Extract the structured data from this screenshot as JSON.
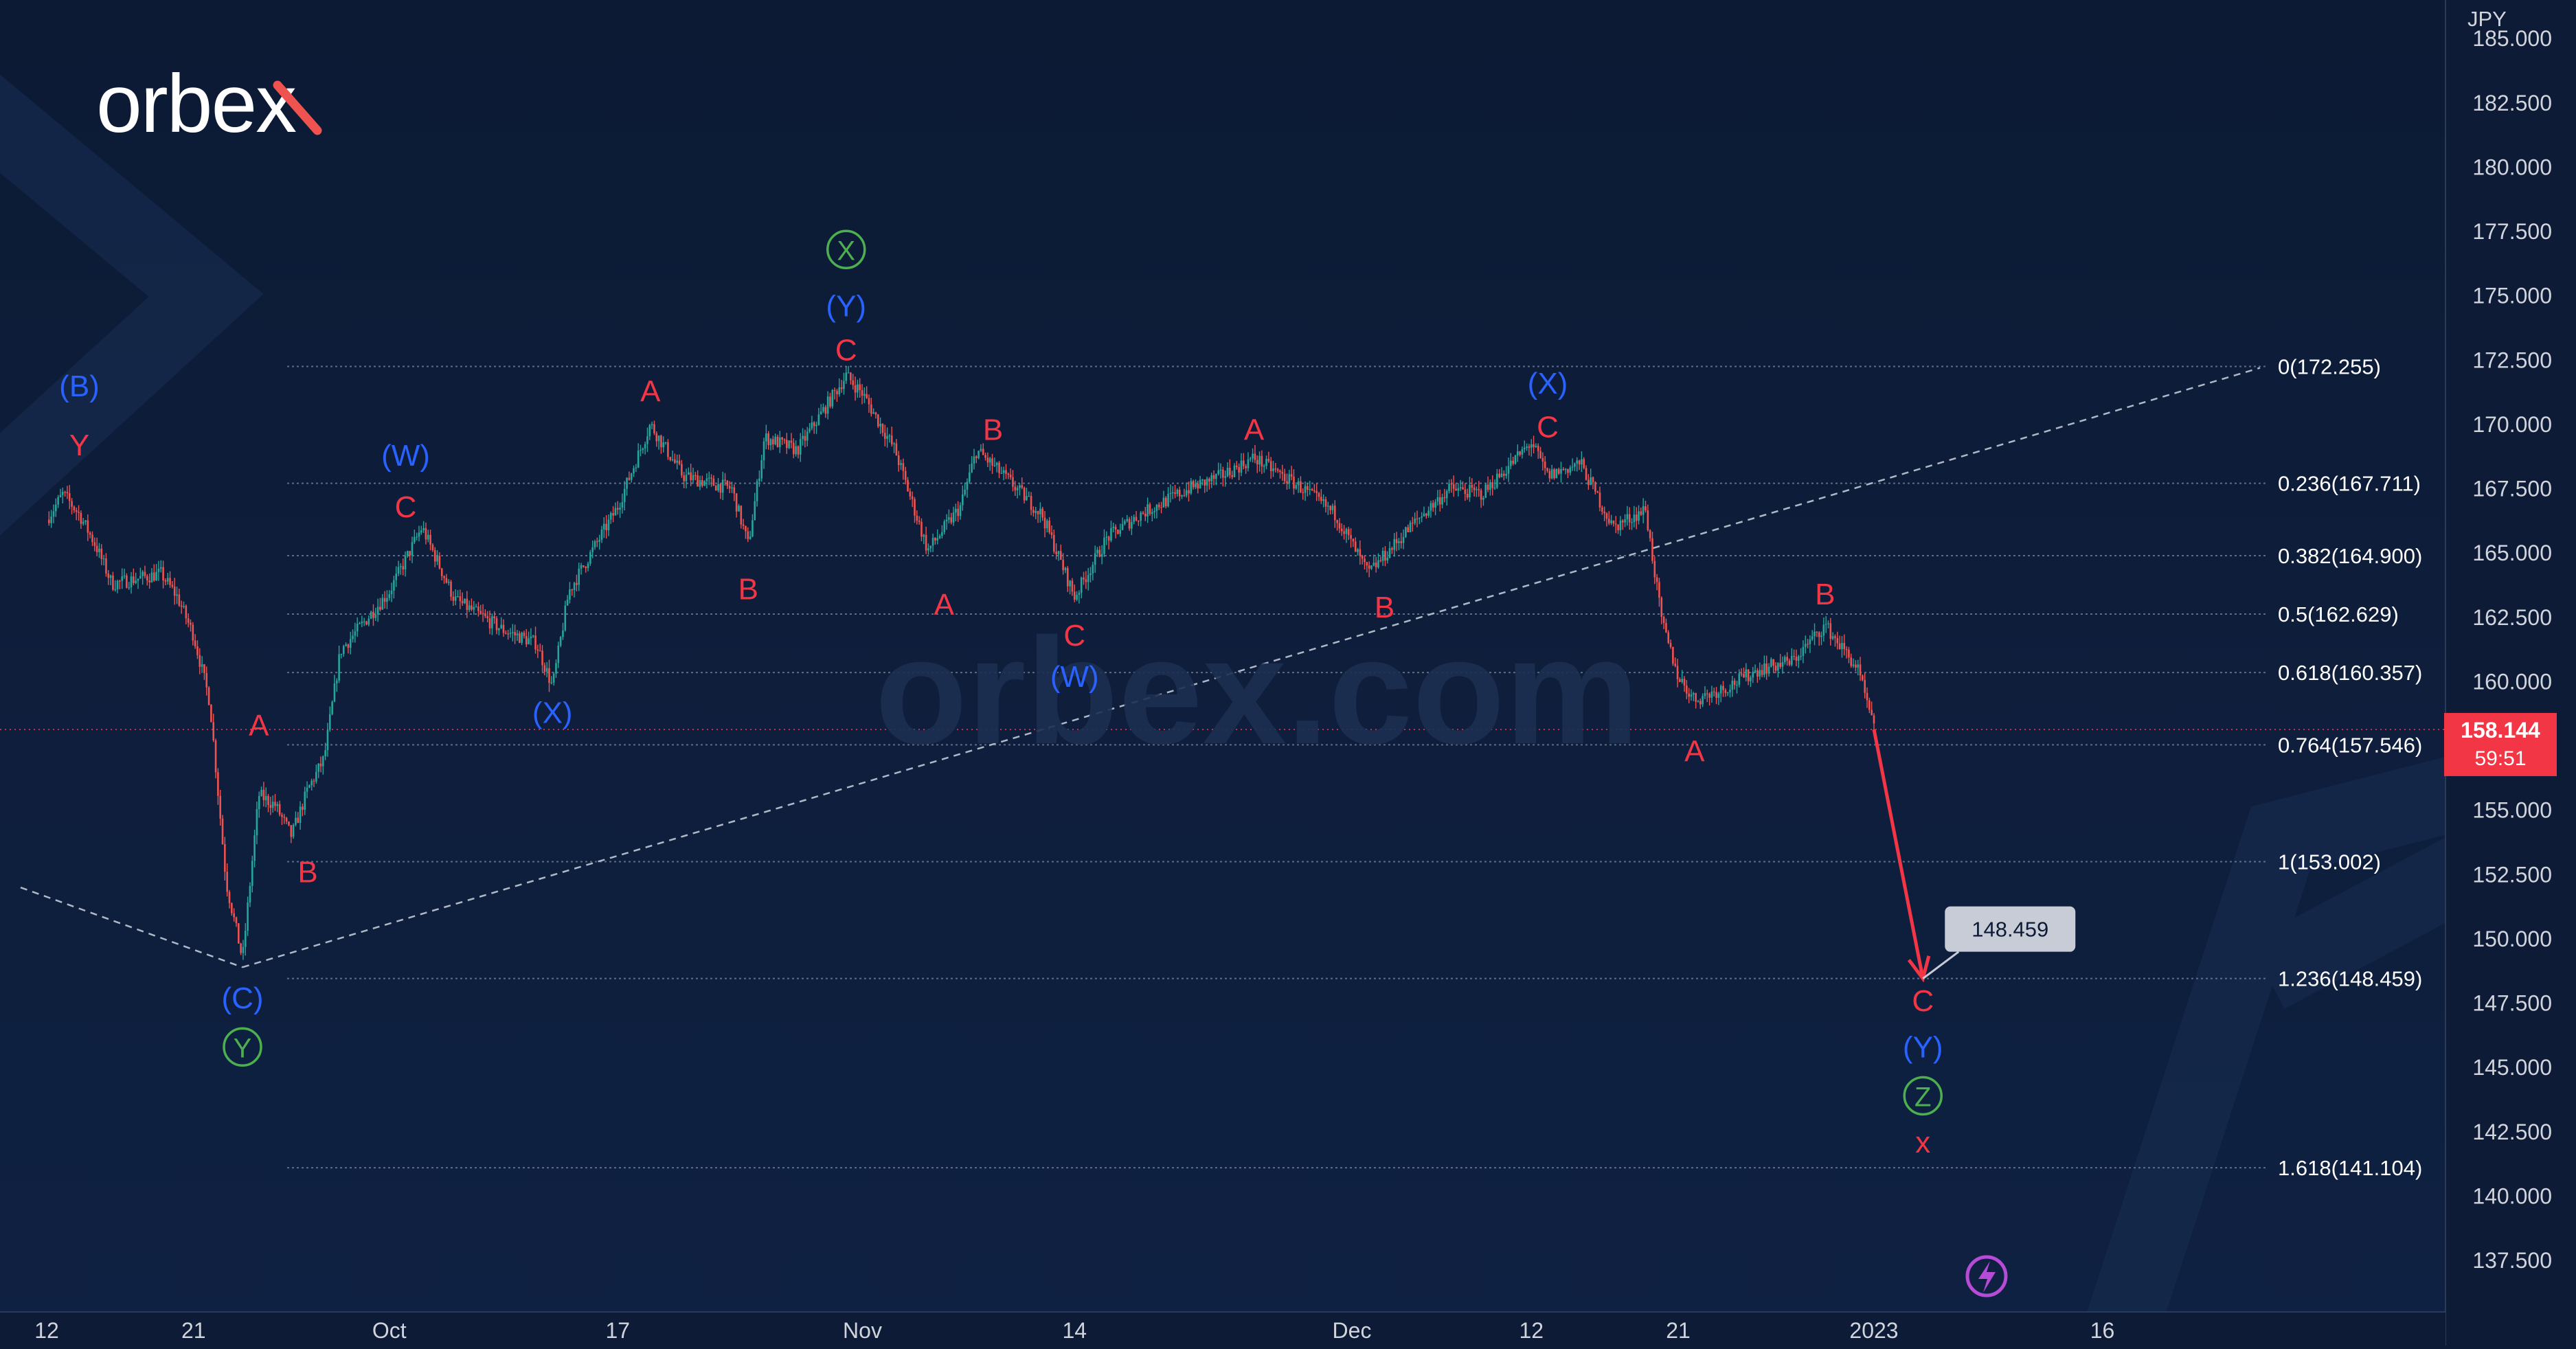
{
  "brand": {
    "logo_text": "orbex",
    "watermark_text": "orbex.com"
  },
  "colors": {
    "background": "#0d1b36",
    "candle_up": "#26a69a",
    "candle_down": "#ef5350",
    "label_red": "#f23645",
    "label_blue": "#2962ff",
    "label_green": "#4caf50",
    "grid": "#4a5a78",
    "axis_text": "#d1d4dc",
    "price_tag": "#f23645"
  },
  "chart_data": {
    "type": "candlestick",
    "currency_label": "JPY",
    "ylim": [
      135.5,
      186.5
    ],
    "y_ticks": [
      "137.500",
      "140.000",
      "142.500",
      "145.000",
      "147.500",
      "150.000",
      "152.500",
      "155.000",
      "157.500",
      "160.000",
      "162.500",
      "165.000",
      "167.500",
      "170.000",
      "172.500",
      "175.000",
      "177.500",
      "180.000",
      "182.500",
      "185.000"
    ],
    "x_ticks": [
      {
        "label": "12",
        "date": "2022-09-12"
      },
      {
        "label": "21",
        "date": "2022-09-21"
      },
      {
        "label": "Oct",
        "date": "2022-10-03"
      },
      {
        "label": "17",
        "date": "2022-10-17"
      },
      {
        "label": "Nov",
        "date": "2022-11-01"
      },
      {
        "label": "14",
        "date": "2022-11-14"
      },
      {
        "label": "Dec",
        "date": "2022-12-01"
      },
      {
        "label": "12",
        "date": "2022-12-12"
      },
      {
        "label": "21",
        "date": "2022-12-21"
      },
      {
        "label": "2023",
        "date": "2023-01-02"
      },
      {
        "label": "16",
        "date": "2023-01-16"
      }
    ],
    "price_path": [
      [
        "2022-09-12",
        166.3
      ],
      [
        "2022-09-13",
        167.3
      ],
      [
        "2022-09-14",
        166.5
      ],
      [
        "2022-09-15",
        165.3
      ],
      [
        "2022-09-16",
        163.8
      ],
      [
        "2022-09-19",
        164.2
      ],
      [
        "2022-09-20",
        163.3
      ],
      [
        "2022-09-21",
        161.8
      ],
      [
        "2022-09-22",
        159.2
      ],
      [
        "2022-09-23",
        152.2
      ],
      [
        "2022-09-24",
        149.2
      ],
      [
        "2022-09-25",
        155.6
      ],
      [
        "2022-09-26",
        155.2
      ],
      [
        "2022-09-27",
        154.0
      ],
      [
        "2022-09-28",
        155.8
      ],
      [
        "2022-09-29",
        157.0
      ],
      [
        "2022-09-30",
        161.2
      ],
      [
        "2022-10-03",
        163.5
      ],
      [
        "2022-10-05",
        166.0
      ],
      [
        "2022-10-07",
        163.2
      ],
      [
        "2022-10-10",
        162.0
      ],
      [
        "2022-10-12",
        161.5
      ],
      [
        "2022-10-13",
        159.8
      ],
      [
        "2022-10-14",
        163.5
      ],
      [
        "2022-10-17",
        166.8
      ],
      [
        "2022-10-19",
        170.0
      ],
      [
        "2022-10-21",
        168.0
      ],
      [
        "2022-10-24",
        167.5
      ],
      [
        "2022-10-25",
        165.3
      ],
      [
        "2022-10-26",
        169.5
      ],
      [
        "2022-10-28",
        169.0
      ],
      [
        "2022-10-31",
        171.9
      ],
      [
        "2022-11-01",
        171.2
      ],
      [
        "2022-11-03",
        169.0
      ],
      [
        "2022-11-05",
        165.1
      ],
      [
        "2022-11-07",
        166.8
      ],
      [
        "2022-11-08",
        169.0
      ],
      [
        "2022-11-10",
        167.8
      ],
      [
        "2022-11-12",
        166.5
      ],
      [
        "2022-11-14",
        163.3
      ],
      [
        "2022-11-16",
        165.6
      ],
      [
        "2022-11-18",
        166.5
      ],
      [
        "2022-11-21",
        167.5
      ],
      [
        "2022-11-23",
        168.0
      ],
      [
        "2022-11-25",
        168.7
      ],
      [
        "2022-11-28",
        167.5
      ],
      [
        "2022-11-30",
        166.5
      ],
      [
        "2022-12-02",
        164.2
      ],
      [
        "2022-12-05",
        166.3
      ],
      [
        "2022-12-07",
        167.5
      ],
      [
        "2022-12-09",
        167.3
      ],
      [
        "2022-12-12",
        169.3
      ],
      [
        "2022-12-13",
        168.0
      ],
      [
        "2022-12-15",
        168.5
      ],
      [
        "2022-12-17",
        166.0
      ],
      [
        "2022-12-19",
        166.7
      ],
      [
        "2022-12-20",
        162.3
      ],
      [
        "2022-12-21",
        160.2
      ],
      [
        "2022-12-22",
        159.3
      ],
      [
        "2022-12-24",
        159.8
      ],
      [
        "2022-12-26",
        160.5
      ],
      [
        "2022-12-28",
        160.8
      ],
      [
        "2022-12-30",
        162.2
      ],
      [
        "2023-01-01",
        160.5
      ],
      [
        "2023-01-02",
        158.144
      ]
    ],
    "current_price": "158.144",
    "countdown": "59:51",
    "fibonacci": [
      {
        "label": "0(172.255)",
        "value": 172.255
      },
      {
        "label": "0.236(167.711)",
        "value": 167.711
      },
      {
        "label": "0.382(164.900)",
        "value": 164.9
      },
      {
        "label": "0.5(162.629)",
        "value": 162.629
      },
      {
        "label": "0.618(160.357)",
        "value": 160.357
      },
      {
        "label": "0.764(157.546)",
        "value": 157.546
      },
      {
        "label": "1(153.002)",
        "value": 153.002
      },
      {
        "label": "1.236(148.459)",
        "value": 148.459
      },
      {
        "label": "1.618(141.104)",
        "value": 141.104
      }
    ],
    "target_label": "148.459",
    "target_value": 148.459,
    "target_date": "2023-01-05",
    "wave_labels": [
      {
        "text": "(B)",
        "color": "blue",
        "x": "2022-09-14",
        "y": 171.5
      },
      {
        "text": "Y",
        "color": "red",
        "x": "2022-09-14",
        "y": 169.2
      },
      {
        "text": "A",
        "color": "red",
        "x": "2022-09-25",
        "y": 158.3
      },
      {
        "text": "B",
        "color": "red",
        "x": "2022-09-28",
        "y": 152.6
      },
      {
        "text": "(C)",
        "color": "blue",
        "x": "2022-09-24",
        "y": 147.7
      },
      {
        "text": "Y",
        "color": "green",
        "circled": true,
        "x": "2022-09-24",
        "y": 145.8
      },
      {
        "text": "(W)",
        "color": "blue",
        "x": "2022-10-04",
        "y": 168.8
      },
      {
        "text": "C",
        "color": "red",
        "x": "2022-10-04",
        "y": 166.8
      },
      {
        "text": "(X)",
        "color": "blue",
        "x": "2022-10-13",
        "y": 158.8
      },
      {
        "text": "A",
        "color": "red",
        "x": "2022-10-19",
        "y": 171.3
      },
      {
        "text": "B",
        "color": "red",
        "x": "2022-10-25",
        "y": 163.6
      },
      {
        "text": "X",
        "color": "green",
        "circled": true,
        "x": "2022-10-31",
        "y": 176.8
      },
      {
        "text": "(Y)",
        "color": "blue",
        "x": "2022-10-31",
        "y": 174.6
      },
      {
        "text": "C",
        "color": "red",
        "x": "2022-10-31",
        "y": 172.9
      },
      {
        "text": "A",
        "color": "red",
        "x": "2022-11-06",
        "y": 163.0
      },
      {
        "text": "B",
        "color": "red",
        "x": "2022-11-09",
        "y": 169.8
      },
      {
        "text": "C",
        "color": "red",
        "x": "2022-11-14",
        "y": 161.8
      },
      {
        "text": "(W)",
        "color": "blue",
        "x": "2022-11-14",
        "y": 160.2
      },
      {
        "text": "A",
        "color": "red",
        "x": "2022-11-25",
        "y": 169.8
      },
      {
        "text": "B",
        "color": "red",
        "x": "2022-12-03",
        "y": 162.9
      },
      {
        "text": "(X)",
        "color": "blue",
        "x": "2022-12-13",
        "y": 171.6
      },
      {
        "text": "C",
        "color": "red",
        "x": "2022-12-13",
        "y": 169.9
      },
      {
        "text": "A",
        "color": "red",
        "x": "2022-12-22",
        "y": 157.3
      },
      {
        "text": "B",
        "color": "red",
        "x": "2022-12-30",
        "y": 163.4
      },
      {
        "text": "C",
        "color": "red",
        "x": "2023-01-05",
        "y": 147.6
      },
      {
        "text": "(Y)",
        "color": "blue",
        "x": "2023-01-05",
        "y": 145.8
      },
      {
        "text": "Z",
        "color": "green",
        "circled": true,
        "x": "2023-01-05",
        "y": 143.9
      },
      {
        "text": "x",
        "color": "red",
        "x": "2023-01-05",
        "y": 142.1
      }
    ]
  }
}
